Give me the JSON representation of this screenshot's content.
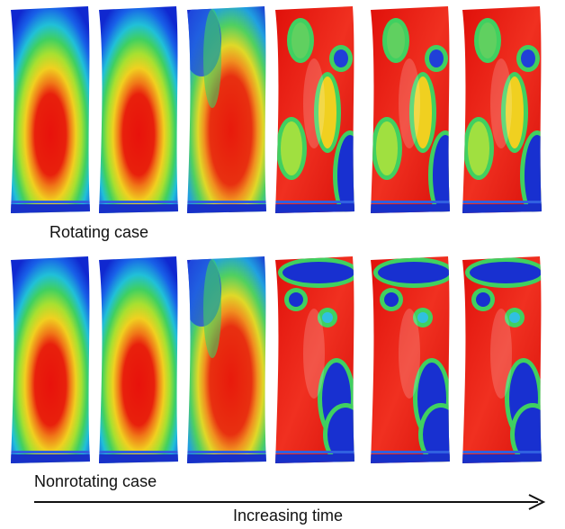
{
  "labels": {
    "top_row": "Rotating case",
    "bottom_row": "Nonrotating case",
    "arrow": "Increasing time"
  }
}
